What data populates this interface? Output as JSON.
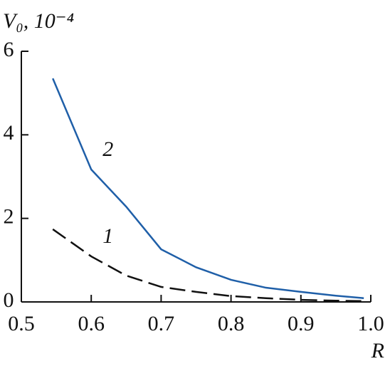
{
  "chart_data": {
    "type": "line",
    "y_label": "V₀, 10⁻⁴",
    "x_label": "R",
    "x": [
      0.545,
      0.6,
      0.65,
      0.7,
      0.75,
      0.8,
      0.85,
      0.9,
      0.95,
      0.99
    ],
    "series": [
      {
        "name": "1",
        "color": "#111111",
        "dashed": true,
        "values": [
          1.74,
          1.09,
          0.63,
          0.36,
          0.24,
          0.14,
          0.09,
          0.05,
          0.03,
          0.02
        ]
      },
      {
        "name": "2",
        "color": "#1f5fa8",
        "dashed": false,
        "values": [
          5.35,
          3.17,
          2.28,
          1.26,
          0.83,
          0.53,
          0.34,
          0.24,
          0.15,
          0.09
        ]
      }
    ],
    "xlim": [
      0.5,
      1.0
    ],
    "xticks": [
      0.5,
      0.6,
      0.7,
      0.8,
      0.9,
      {
        "value": 1.0,
        "label": "1.0"
      }
    ],
    "ylim": [
      0,
      6
    ],
    "yticks": [
      0,
      2,
      4,
      6
    ]
  }
}
